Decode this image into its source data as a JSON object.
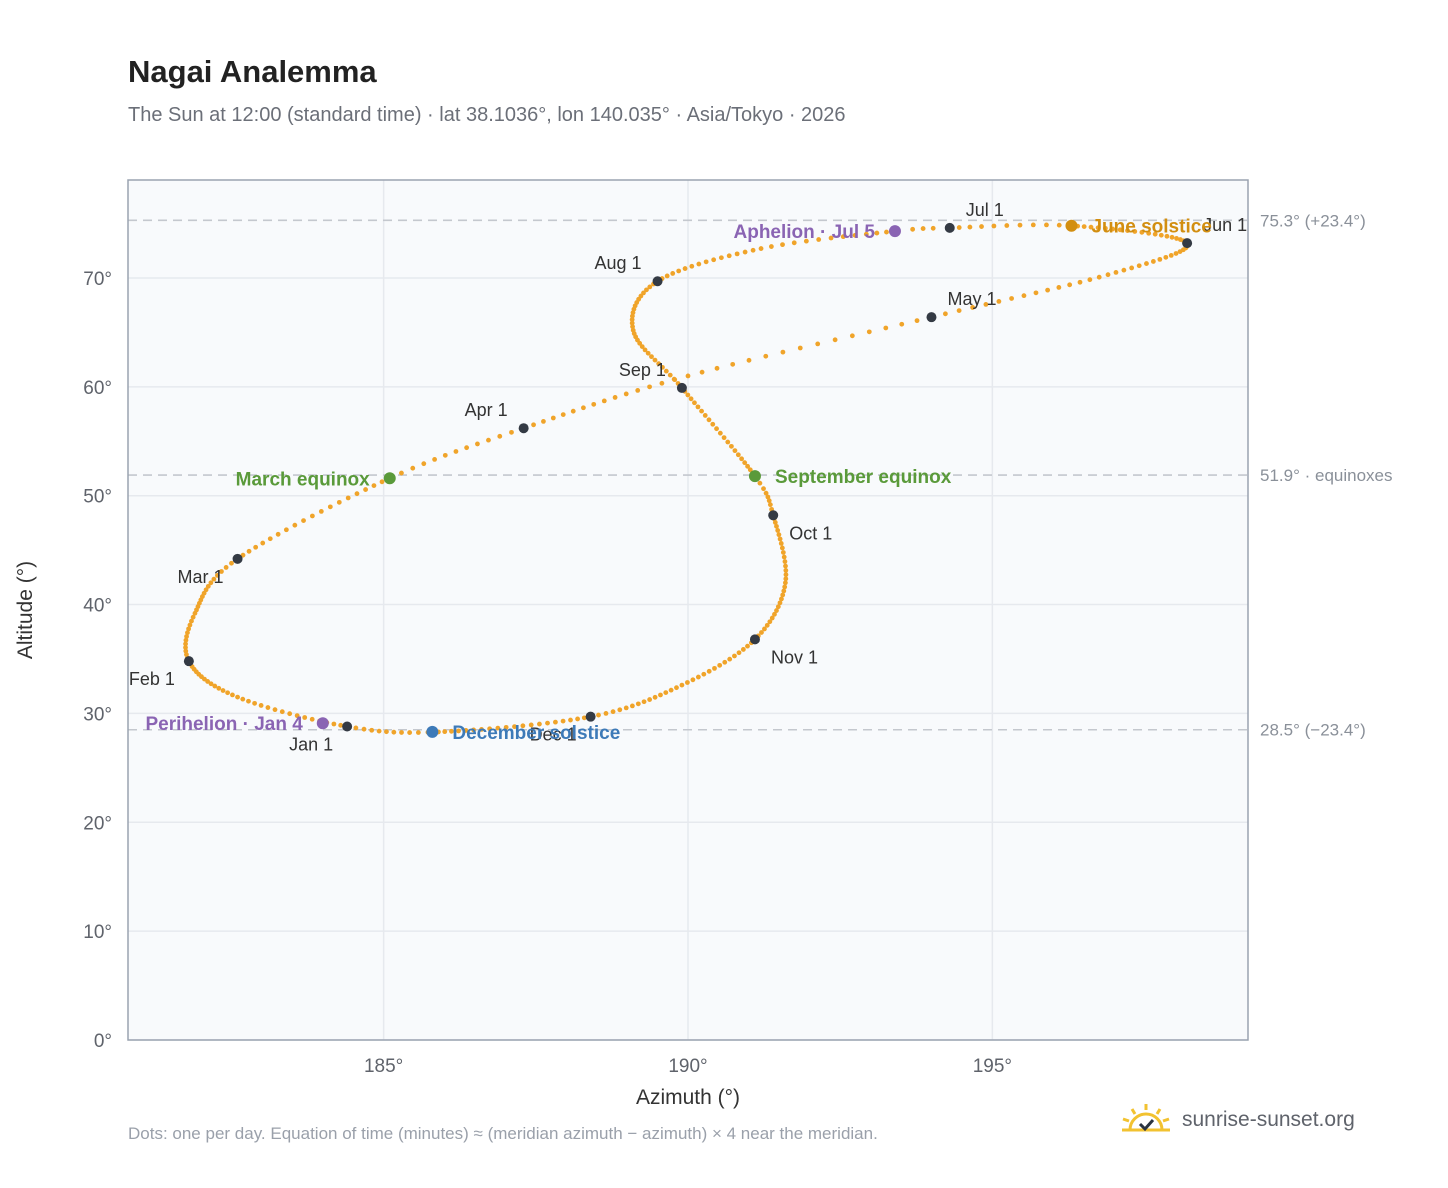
{
  "title": "Nagai Analemma",
  "subtitle": "The Sun at 12:00 (standard time) · lat 38.1036°, lon 140.035° · Asia/Tokyo · 2026",
  "footnote": "Dots: one per day. Equation of time (minutes) ≈ (meridian azimuth − azimuth) × 4 near the meridian.",
  "brand": {
    "text": "sunrise-sunset.org",
    "icon": "sun-logo-icon"
  },
  "colors": {
    "path": "#f0a42a",
    "month_dot": "#343a44",
    "equinox": "#5a9a3a",
    "june_solstice": "#d28e10",
    "december_solstice": "#3d7ab8",
    "apsis": "#8a64b3",
    "reference_line": "#c4c8ce",
    "plot_background": "#f8fafc",
    "grid": "#e6e9ee"
  },
  "chart_data": {
    "type": "scatter",
    "xlabel": "Azimuth (°)",
    "ylabel": "Altitude (°)",
    "xlim": [
      180.8,
      199.2
    ],
    "ylim": [
      0,
      79
    ],
    "xticks": [
      185,
      190,
      195
    ],
    "xtick_labels": [
      "185°",
      "190°",
      "195°"
    ],
    "yticks": [
      0,
      10,
      20,
      30,
      40,
      50,
      60,
      70
    ],
    "ytick_labels": [
      "0°",
      "10°",
      "20°",
      "30°",
      "40°",
      "50°",
      "60°",
      "70°"
    ],
    "grid": true,
    "reference_lines": [
      {
        "y": 75.3,
        "label": "75.3° (+23.4°)"
      },
      {
        "y": 51.9,
        "label": "51.9° · equinoxes"
      },
      {
        "y": 28.5,
        "label": "28.5° (−23.4°)"
      }
    ],
    "path_anchors": [
      {
        "day": 1,
        "az": 184.4,
        "alt": 28.8
      },
      {
        "day": 17,
        "az": 182.6,
        "alt": 31.5
      },
      {
        "day": 32,
        "az": 181.8,
        "alt": 34.8
      },
      {
        "day": 45,
        "az": 181.9,
        "alt": 39.2
      },
      {
        "day": 60,
        "az": 182.6,
        "alt": 44.2
      },
      {
        "day": 79,
        "az": 185.1,
        "alt": 51.6
      },
      {
        "day": 91,
        "az": 187.3,
        "alt": 56.2
      },
      {
        "day": 106,
        "az": 190.0,
        "alt": 61.0
      },
      {
        "day": 121,
        "az": 194.0,
        "alt": 66.4
      },
      {
        "day": 136,
        "az": 196.9,
        "alt": 70.3
      },
      {
        "day": 152,
        "az": 198.2,
        "alt": 73.2
      },
      {
        "day": 172,
        "az": 196.3,
        "alt": 74.8
      },
      {
        "day": 182,
        "az": 194.3,
        "alt": 74.6
      },
      {
        "day": 186,
        "az": 193.4,
        "alt": 74.3
      },
      {
        "day": 198,
        "az": 191.2,
        "alt": 72.7
      },
      {
        "day": 213,
        "az": 189.5,
        "alt": 69.7
      },
      {
        "day": 228,
        "az": 189.1,
        "alt": 65.2
      },
      {
        "day": 244,
        "az": 189.9,
        "alt": 59.9
      },
      {
        "day": 266,
        "az": 191.1,
        "alt": 51.8
      },
      {
        "day": 274,
        "az": 191.4,
        "alt": 48.2
      },
      {
        "day": 290,
        "az": 191.6,
        "alt": 42.0
      },
      {
        "day": 305,
        "az": 191.1,
        "alt": 36.8
      },
      {
        "day": 320,
        "az": 189.9,
        "alt": 32.6
      },
      {
        "day": 335,
        "az": 188.4,
        "alt": 29.7
      },
      {
        "day": 355,
        "az": 185.9,
        "alt": 28.3
      },
      {
        "day": 366,
        "az": 184.4,
        "alt": 28.8
      }
    ],
    "month_points": [
      {
        "label": "Jan 1",
        "az": 184.4,
        "alt": 28.8,
        "pos": "below-left"
      },
      {
        "label": "Feb 1",
        "az": 181.8,
        "alt": 34.8,
        "pos": "below-left"
      },
      {
        "label": "Mar 1",
        "az": 182.6,
        "alt": 44.2,
        "pos": "below-left"
      },
      {
        "label": "Apr 1",
        "az": 187.3,
        "alt": 56.2,
        "pos": "above-left"
      },
      {
        "label": "May 1",
        "az": 194.0,
        "alt": 66.4,
        "pos": "above-right"
      },
      {
        "label": "Jun 1",
        "az": 198.2,
        "alt": 73.2,
        "pos": "above-right"
      },
      {
        "label": "Jul 1",
        "az": 194.3,
        "alt": 74.6,
        "pos": "above-right"
      },
      {
        "label": "Aug 1",
        "az": 189.5,
        "alt": 69.7,
        "pos": "above-left"
      },
      {
        "label": "Sep 1",
        "az": 189.9,
        "alt": 59.9,
        "pos": "above-left"
      },
      {
        "label": "Oct 1",
        "az": 191.4,
        "alt": 48.2,
        "pos": "below-right"
      },
      {
        "label": "Nov 1",
        "az": 191.1,
        "alt": 36.8,
        "pos": "below-right"
      },
      {
        "label": "Dec 1",
        "az": 188.4,
        "alt": 29.7,
        "pos": "below-left"
      }
    ],
    "events": [
      {
        "label": "March equinox",
        "az": 185.1,
        "alt": 51.6,
        "kind": "equinox",
        "pos": "left"
      },
      {
        "label": "September equinox",
        "az": 191.1,
        "alt": 51.8,
        "kind": "equinox",
        "pos": "right"
      },
      {
        "label": "June solstice",
        "az": 196.3,
        "alt": 74.8,
        "kind": "june_solstice",
        "pos": "right"
      },
      {
        "label": "December solstice",
        "az": 185.8,
        "alt": 28.3,
        "kind": "december_solstice",
        "pos": "right"
      },
      {
        "label": "Perihelion · Jan 4",
        "az": 184.0,
        "alt": 29.1,
        "kind": "apsis",
        "pos": "left"
      },
      {
        "label": "Aphelion · Jul 5",
        "az": 193.4,
        "alt": 74.3,
        "kind": "apsis",
        "pos": "left"
      }
    ]
  }
}
